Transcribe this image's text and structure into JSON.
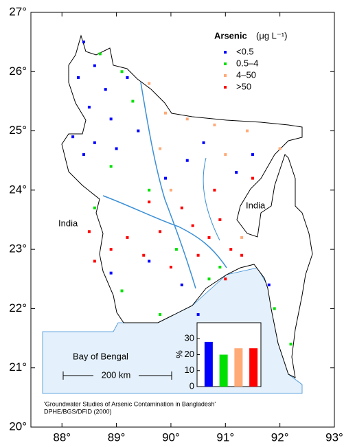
{
  "map": {
    "xlim": [
      87.43,
      93
    ],
    "ylim": [
      20,
      27
    ],
    "xticks": [
      {
        "value": 88,
        "label": "88°"
      },
      {
        "value": 89,
        "label": "89°"
      },
      {
        "value": 90,
        "label": "90°"
      },
      {
        "value": 91,
        "label": "91°"
      },
      {
        "value": 92,
        "label": "92°"
      },
      {
        "value": 93,
        "label": "93°"
      }
    ],
    "yticks": [
      {
        "value": 20,
        "label": "20°"
      },
      {
        "value": 21,
        "label": "21°"
      },
      {
        "value": 22,
        "label": "22°"
      },
      {
        "value": 23,
        "label": "23°"
      },
      {
        "value": 24,
        "label": "24°"
      },
      {
        "value": 25,
        "label": "25°"
      },
      {
        "value": 26,
        "label": "26°"
      },
      {
        "value": 27,
        "label": "27°"
      }
    ],
    "legend": {
      "title": "Arsenic",
      "unit": "(μg L⁻¹)",
      "entries": [
        {
          "name": "<0.5",
          "color": "#0000ff"
        },
        {
          "name": "0.5–4",
          "color": "#00e000"
        },
        {
          "name": "4–50",
          "color": "#ffaa77"
        },
        {
          "name": ">50",
          "color": "#ff0000"
        }
      ]
    },
    "labels": {
      "india_west": "India",
      "india_east": "India",
      "bay": "Bay of Bengal",
      "scale": "200 km"
    },
    "source": [
      "'Groundwater Studies of Arsenic Contamination in Bangladesh'",
      "DPHE/BGS/DFID (2000)"
    ],
    "sites": {
      "lon": [
        88.4,
        88.6,
        88.3,
        88.8,
        88.5,
        88.9,
        88.2,
        88.6,
        89.0,
        88.4,
        89.2,
        89.4,
        89.9,
        90.3,
        90.6,
        91.2,
        91.5,
        90.2,
        90.5,
        91.8,
        88.9,
        89.6,
        88.7,
        89.1,
        89.3,
        88.9,
        89.6,
        90.1,
        90.7,
        91.9,
        92.2,
        88.6,
        89.1,
        90.9,
        89.8,
        89.6,
        89.9,
        90.3,
        90.8,
        91.4,
        89.8,
        90.0,
        91.0,
        91.3,
        92.0,
        90.4,
        90.7,
        90.9,
        91.1,
        90.5,
        90.2,
        89.8,
        89.5,
        89.2,
        88.9,
        88.6,
        90.0,
        91.3,
        89.6,
        90.8,
        91.5,
        91.0,
        88.5
      ],
      "lat": [
        26.5,
        26.1,
        25.9,
        25.7,
        25.4,
        25.2,
        24.9,
        24.8,
        24.7,
        24.6,
        25.9,
        25.0,
        24.2,
        24.5,
        24.8,
        24.3,
        24.6,
        22.4,
        21.9,
        22.4,
        22.6,
        22.8,
        26.3,
        26.0,
        25.5,
        24.4,
        24.0,
        23.0,
        22.5,
        22.0,
        21.4,
        23.7,
        22.3,
        22.7,
        21.9,
        25.8,
        25.3,
        25.2,
        25.1,
        25.0,
        24.7,
        24.0,
        24.6,
        23.2,
        24.7,
        23.4,
        23.2,
        23.5,
        23.0,
        22.9,
        23.7,
        23.3,
        22.9,
        23.2,
        23.0,
        22.8,
        22.7,
        22.9,
        23.8,
        24.0,
        24.2,
        22.5,
        23.3
      ],
      "class": [
        0,
        0,
        0,
        0,
        0,
        0,
        0,
        0,
        0,
        0,
        0,
        0,
        0,
        0,
        0,
        0,
        0,
        0,
        0,
        0,
        0,
        0,
        1,
        1,
        1,
        1,
        1,
        1,
        1,
        1,
        1,
        1,
        1,
        1,
        1,
        2,
        2,
        2,
        2,
        2,
        2,
        2,
        2,
        2,
        2,
        3,
        3,
        3,
        3,
        3,
        3,
        3,
        3,
        3,
        3,
        3,
        3,
        3,
        3,
        3,
        3,
        3,
        3
      ]
    },
    "inset": {
      "type": "bar",
      "ylabel": "%",
      "values": [
        28,
        20,
        24,
        24
      ],
      "ylim": [
        0,
        40
      ],
      "yticks": [
        0,
        10,
        20,
        30
      ]
    }
  }
}
